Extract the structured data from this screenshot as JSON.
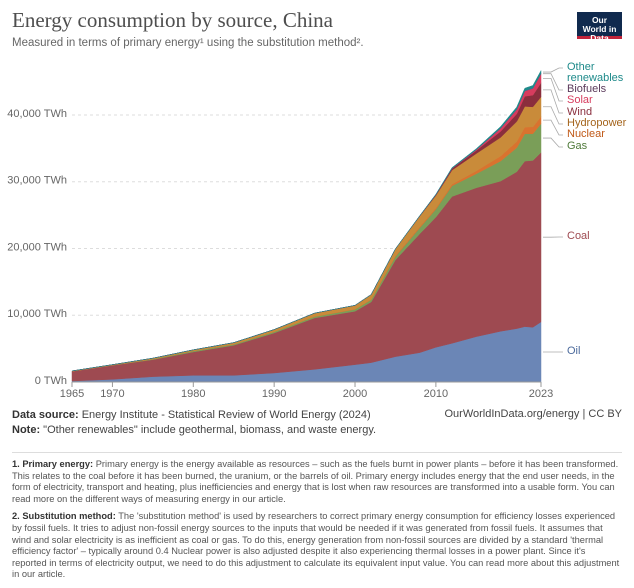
{
  "chart_data": {
    "type": "area",
    "stacked": true,
    "title": "Energy consumption by source, China",
    "subtitle": "Measured in terms of primary energy¹ using the substitution method².",
    "x": [
      1965,
      1970,
      1975,
      1980,
      1985,
      1990,
      1995,
      2000,
      2002,
      2005,
      2008,
      2010,
      2012,
      2015,
      2018,
      2020,
      2021,
      2022,
      2023
    ],
    "series": [
      {
        "name": "Oil",
        "color": "#6b86b6",
        "values": [
          150,
          400,
          800,
          1000,
          1000,
          1350,
          1900,
          2600,
          2900,
          3800,
          4400,
          5200,
          5800,
          6800,
          7600,
          8000,
          8300,
          8200,
          9000
        ]
      },
      {
        "name": "Coal",
        "color": "#9e4a51",
        "values": [
          1450,
          2100,
          2550,
          3500,
          4500,
          6000,
          7700,
          8000,
          9100,
          14500,
          17800,
          19500,
          22000,
          22300,
          22500,
          23500,
          24800,
          25000,
          25400
        ]
      },
      {
        "name": "Gas",
        "color": "#7a9e58",
        "values": [
          10,
          30,
          90,
          160,
          150,
          180,
          200,
          280,
          330,
          500,
          900,
          1200,
          1600,
          2100,
          3000,
          3600,
          4100,
          4000,
          4300
        ]
      },
      {
        "name": "Nuclear",
        "color": "#d9732f",
        "values": [
          0,
          0,
          0,
          0,
          0,
          0,
          30,
          45,
          65,
          140,
          180,
          190,
          250,
          430,
          750,
          930,
          1000,
          1030,
          1070
        ]
      },
      {
        "name": "Hydropower",
        "color": "#c98b3a",
        "values": [
          50,
          70,
          130,
          160,
          250,
          330,
          490,
          560,
          710,
          1000,
          1550,
          1850,
          2100,
          2600,
          2800,
          3000,
          3100,
          3000,
          2950
        ]
      },
      {
        "name": "Wind",
        "color": "#8a2e3d",
        "values": [
          0,
          0,
          0,
          0,
          0,
          0,
          0,
          0,
          0,
          5,
          35,
          115,
          250,
          450,
          900,
          1150,
          1520,
          1750,
          2100
        ]
      },
      {
        "name": "Solar",
        "color": "#d73c5e",
        "values": [
          0,
          0,
          0,
          0,
          0,
          0,
          0,
          0,
          0,
          0,
          0,
          2,
          10,
          110,
          440,
          640,
          770,
          1000,
          1350
        ]
      },
      {
        "name": "Biofuels",
        "color": "#8c3f86",
        "values": [
          0,
          0,
          0,
          0,
          0,
          0,
          0,
          0,
          0,
          5,
          20,
          25,
          25,
          30,
          40,
          45,
          50,
          55,
          60
        ]
      },
      {
        "name": "Other renewables",
        "color": "#1e8a8a",
        "values": [
          0,
          0,
          0,
          0,
          0,
          0,
          0,
          0,
          0,
          10,
          30,
          55,
          90,
          140,
          230,
          330,
          380,
          400,
          430
        ]
      }
    ],
    "xlim": [
      1965,
      2023
    ],
    "xticks": [
      1965,
      1970,
      1980,
      1990,
      2000,
      2010,
      2023
    ],
    "ylim": [
      0,
      47500
    ],
    "yticks": [
      {
        "value": 0,
        "label": "0 TWh"
      },
      {
        "value": 10000,
        "label": "10,000 TWh"
      },
      {
        "value": 20000,
        "label": "20,000 TWh"
      },
      {
        "value": 30000,
        "label": "30,000 TWh"
      },
      {
        "value": 40000,
        "label": "40,000 TWh"
      }
    ],
    "grid": true
  },
  "logo": "Our World in Data",
  "source_label": "Data source:",
  "source": "Energy Institute - Statistical Review of World Energy (2024)",
  "url": "OurWorldInData.org/energy | CC BY",
  "note_label": "Note:",
  "note": "\"Other renewables\" include geothermal, biomass, and waste energy.",
  "footnotes": [
    {
      "heading": "1. Primary energy:",
      "text": "Primary energy is the energy available as resources – such as the fuels burnt in power plants – before it has been transformed. This relates to the coal before it has been burned, the uranium, or the barrels of oil. Primary energy includes energy that the end user needs, in the form of electricity, transport and heating, plus inefficiencies and energy that is lost when raw resources are transformed into a usable form. You can read more on the different ways of measuring energy in our article."
    },
    {
      "heading": "2. Substitution method:",
      "text": "The 'substitution method' is used by researchers to correct primary energy consumption for efficiency losses experienced by fossil fuels. It tries to adjust non-fossil energy sources to the inputs that would be needed if it was generated from fossil fuels. It assumes that wind and solar electricity is as inefficient as coal or gas. To do this, energy generation from non-fossil sources are divided by a standard 'thermal efficiency factor' – typically around 0.4 Nuclear power is also adjusted despite it also experiencing thermal losses in a power plant. Since it's reported in terms of electricity output, we need to do this adjustment to calculate its equivalent input value. You can read more about this adjustment in our article."
    }
  ]
}
